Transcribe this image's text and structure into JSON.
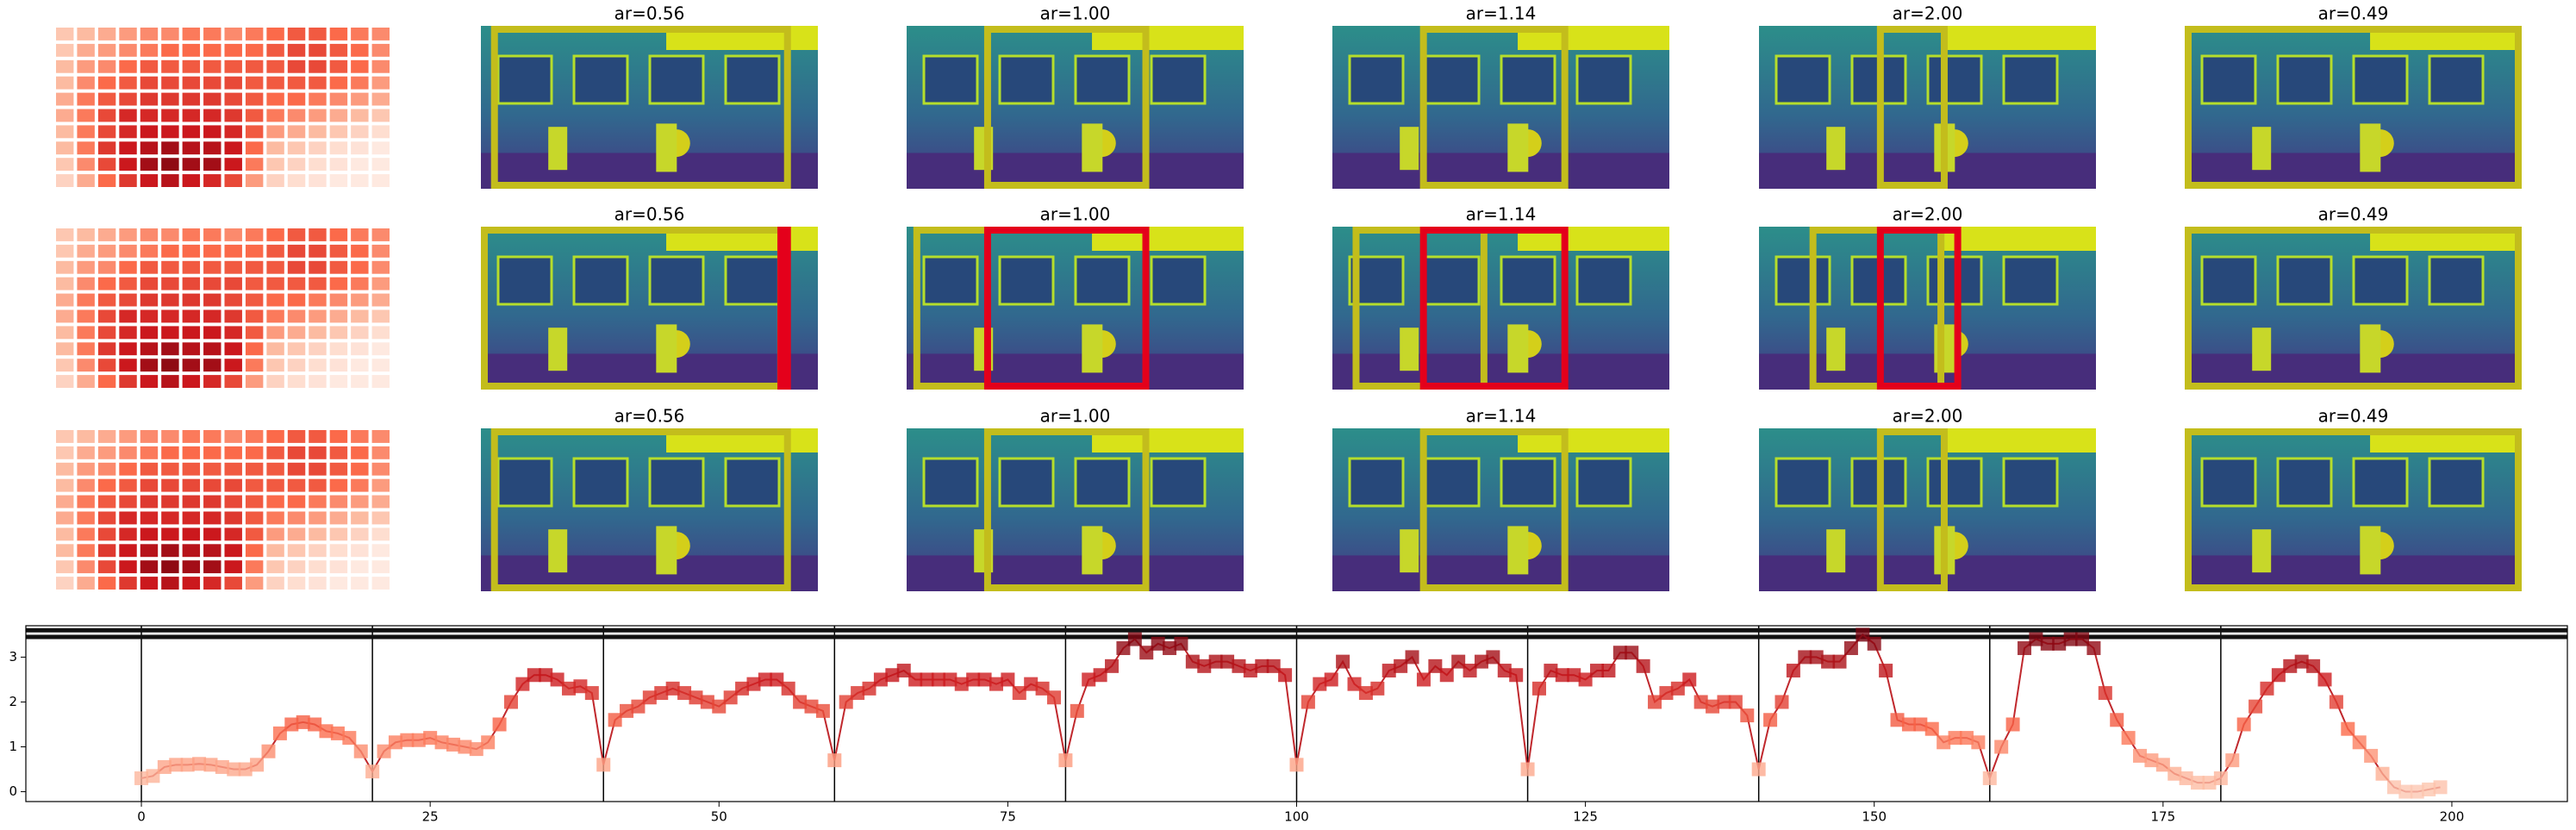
{
  "image_rows": [
    {
      "titles": [
        "ar=0.56",
        "ar=1.00",
        "ar=1.14",
        "ar=2.00",
        "ar=0.49"
      ]
    },
    {
      "titles": [
        "ar=0.56",
        "ar=1.00",
        "ar=1.14",
        "ar=2.00",
        "ar=0.49"
      ]
    },
    {
      "titles": [
        "ar=0.56",
        "ar=1.00",
        "ar=1.14",
        "ar=2.00",
        "ar=0.49"
      ]
    }
  ],
  "chart_data": [
    {
      "type": "heatmap",
      "colormap": "Reds",
      "values": [
        [
          0.2,
          0.25,
          0.3,
          0.35,
          0.4,
          0.4,
          0.45,
          0.45,
          0.4,
          0.45,
          0.5,
          0.55,
          0.55,
          0.5,
          0.45,
          0.4
        ],
        [
          0.2,
          0.3,
          0.35,
          0.4,
          0.45,
          0.5,
          0.5,
          0.5,
          0.5,
          0.5,
          0.55,
          0.6,
          0.6,
          0.55,
          0.5,
          0.4
        ],
        [
          0.25,
          0.35,
          0.4,
          0.5,
          0.55,
          0.55,
          0.55,
          0.55,
          0.55,
          0.55,
          0.55,
          0.6,
          0.6,
          0.55,
          0.5,
          0.4
        ],
        [
          0.25,
          0.4,
          0.5,
          0.55,
          0.6,
          0.6,
          0.6,
          0.6,
          0.6,
          0.55,
          0.55,
          0.55,
          0.55,
          0.5,
          0.45,
          0.35
        ],
        [
          0.3,
          0.45,
          0.55,
          0.6,
          0.65,
          0.65,
          0.65,
          0.65,
          0.6,
          0.55,
          0.5,
          0.5,
          0.45,
          0.4,
          0.35,
          0.3
        ],
        [
          0.3,
          0.45,
          0.6,
          0.7,
          0.7,
          0.7,
          0.7,
          0.7,
          0.65,
          0.55,
          0.45,
          0.4,
          0.35,
          0.3,
          0.25,
          0.2
        ],
        [
          0.25,
          0.45,
          0.6,
          0.7,
          0.75,
          0.75,
          0.75,
          0.75,
          0.7,
          0.55,
          0.35,
          0.3,
          0.25,
          0.2,
          0.15,
          0.1
        ],
        [
          0.25,
          0.45,
          0.65,
          0.75,
          0.8,
          0.85,
          0.8,
          0.8,
          0.75,
          0.5,
          0.25,
          0.2,
          0.15,
          0.1,
          0.08,
          0.05
        ],
        [
          0.2,
          0.4,
          0.6,
          0.75,
          0.85,
          0.9,
          0.85,
          0.85,
          0.75,
          0.45,
          0.2,
          0.15,
          0.1,
          0.08,
          0.05,
          0.05
        ],
        [
          0.15,
          0.3,
          0.5,
          0.65,
          0.75,
          0.8,
          0.75,
          0.7,
          0.6,
          0.35,
          0.15,
          0.1,
          0.08,
          0.05,
          0.05,
          0.05
        ]
      ]
    },
    {
      "type": "line",
      "color": "#c0282d",
      "colormap": "Reds",
      "xlim": [
        -10,
        210
      ],
      "ylim": [
        -0.22,
        3.7
      ],
      "xticks": [
        0,
        25,
        50,
        75,
        100,
        125,
        150,
        175,
        200
      ],
      "yticks": [
        0,
        1,
        2,
        3
      ],
      "vlines": [
        0,
        20,
        40,
        60,
        80,
        100,
        120,
        140,
        160,
        180
      ],
      "hlines": [
        3.6,
        3.45
      ],
      "x": [
        0,
        1,
        2,
        3,
        4,
        5,
        6,
        7,
        8,
        9,
        10,
        11,
        12,
        13,
        14,
        15,
        16,
        17,
        18,
        19,
        20,
        21,
        22,
        23,
        24,
        25,
        26,
        27,
        28,
        29,
        30,
        31,
        32,
        33,
        34,
        35,
        36,
        37,
        38,
        39,
        40,
        41,
        42,
        43,
        44,
        45,
        46,
        47,
        48,
        49,
        50,
        51,
        52,
        53,
        54,
        55,
        56,
        57,
        58,
        59,
        60,
        61,
        62,
        63,
        64,
        65,
        66,
        67,
        68,
        69,
        70,
        71,
        72,
        73,
        74,
        75,
        76,
        77,
        78,
        79,
        80,
        81,
        82,
        83,
        84,
        85,
        86,
        87,
        88,
        89,
        90,
        91,
        92,
        93,
        94,
        95,
        96,
        97,
        98,
        99,
        100,
        101,
        102,
        103,
        104,
        105,
        106,
        107,
        108,
        109,
        110,
        111,
        112,
        113,
        114,
        115,
        116,
        117,
        118,
        119,
        120,
        121,
        122,
        123,
        124,
        125,
        126,
        127,
        128,
        129,
        130,
        131,
        132,
        133,
        134,
        135,
        136,
        137,
        138,
        139,
        140,
        141,
        142,
        143,
        144,
        145,
        146,
        147,
        148,
        149,
        150,
        151,
        152,
        153,
        154,
        155,
        156,
        157,
        158,
        159,
        160,
        161,
        162,
        163,
        164,
        165,
        166,
        167,
        168,
        169,
        170,
        171,
        172,
        173,
        174,
        175,
        176,
        177,
        178,
        179,
        180,
        181,
        182,
        183,
        184,
        185,
        186,
        187,
        188,
        189,
        190,
        191,
        192,
        193,
        194,
        195,
        196,
        197,
        198,
        199
      ],
      "values": [
        0.3,
        0.35,
        0.55,
        0.6,
        0.6,
        0.62,
        0.6,
        0.55,
        0.5,
        0.5,
        0.6,
        0.9,
        1.3,
        1.5,
        1.55,
        1.5,
        1.35,
        1.3,
        1.2,
        0.9,
        0.45,
        0.9,
        1.1,
        1.15,
        1.15,
        1.2,
        1.1,
        1.05,
        1.0,
        0.95,
        1.1,
        1.5,
        2.0,
        2.4,
        2.6,
        2.6,
        2.5,
        2.3,
        2.35,
        2.2,
        0.6,
        1.6,
        1.8,
        1.9,
        2.1,
        2.2,
        2.3,
        2.2,
        2.1,
        2.0,
        1.9,
        2.1,
        2.3,
        2.4,
        2.5,
        2.5,
        2.3,
        2.0,
        1.9,
        1.8,
        0.7,
        2.0,
        2.2,
        2.3,
        2.5,
        2.6,
        2.7,
        2.5,
        2.5,
        2.5,
        2.5,
        2.4,
        2.5,
        2.5,
        2.4,
        2.5,
        2.2,
        2.4,
        2.3,
        2.1,
        0.7,
        1.8,
        2.5,
        2.6,
        2.8,
        3.2,
        3.4,
        3.1,
        3.3,
        3.2,
        3.3,
        2.9,
        2.8,
        2.9,
        2.9,
        2.8,
        2.7,
        2.8,
        2.8,
        2.6,
        0.6,
        2.0,
        2.4,
        2.5,
        2.9,
        2.4,
        2.2,
        2.3,
        2.7,
        2.8,
        3.0,
        2.5,
        2.8,
        2.6,
        2.9,
        2.7,
        2.9,
        3.0,
        2.7,
        2.6,
        0.5,
        2.3,
        2.7,
        2.6,
        2.6,
        2.5,
        2.7,
        2.7,
        3.1,
        3.1,
        2.8,
        2.0,
        2.2,
        2.3,
        2.5,
        2.0,
        1.9,
        2.0,
        2.0,
        1.7,
        0.5,
        1.6,
        2.0,
        2.7,
        3.0,
        3.0,
        2.9,
        2.9,
        3.2,
        3.5,
        3.3,
        2.7,
        1.6,
        1.5,
        1.5,
        1.4,
        1.1,
        1.2,
        1.2,
        1.1,
        0.3,
        1.0,
        1.5,
        3.2,
        3.4,
        3.3,
        3.3,
        3.4,
        3.4,
        3.2,
        2.2,
        1.6,
        1.2,
        0.8,
        0.7,
        0.6,
        0.4,
        0.3,
        0.2,
        0.2,
        0.3,
        0.7,
        1.5,
        1.9,
        2.3,
        2.6,
        2.8,
        2.9,
        2.8,
        2.5,
        2.0,
        1.4,
        1.1,
        0.8,
        0.4,
        0.1,
        0.0,
        0.0,
        0.05,
        0.1
      ]
    }
  ]
}
